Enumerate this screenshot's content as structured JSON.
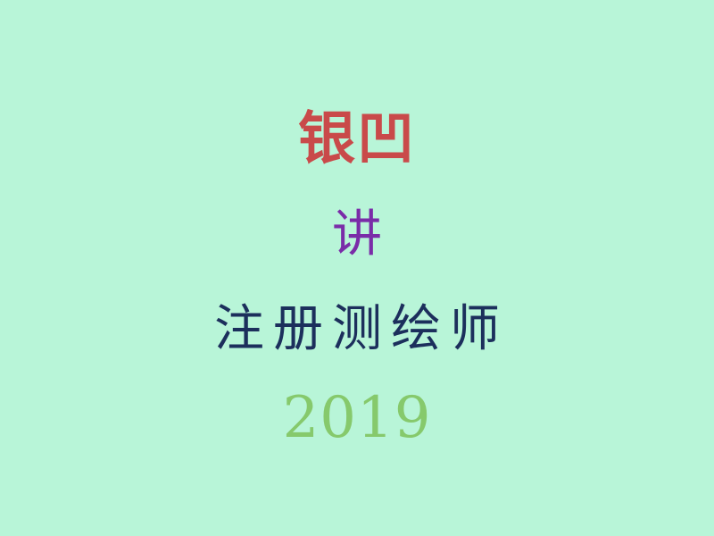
{
  "text": {
    "brand": "银凹",
    "verb": "讲",
    "subject": "注册测绘师",
    "year": "2019"
  },
  "colors": {
    "background": "#b8f5d8",
    "brand": "#c94a4a",
    "verb": "#7a2ca8",
    "subject": "#1c2f5c",
    "year": "#86c96c"
  }
}
